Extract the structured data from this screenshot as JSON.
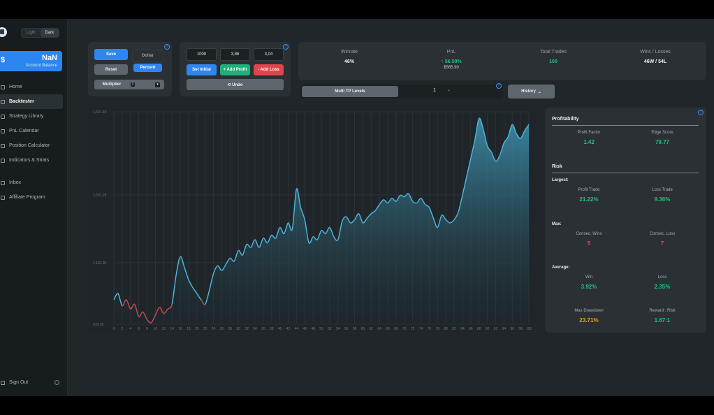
{
  "theme_toggle": {
    "light": "Light",
    "dark": "Dark"
  },
  "balance": {
    "currency": "$",
    "value": "NaN",
    "label": "Account Balance"
  },
  "nav": {
    "items": [
      {
        "label": "Home"
      },
      {
        "label": "Backtester"
      },
      {
        "label": "Strategy Library"
      },
      {
        "label": "PnL Calendar"
      },
      {
        "label": "Position Calculator"
      },
      {
        "label": "Indicators & Strats"
      }
    ],
    "secondary": [
      {
        "label": "Inbox"
      },
      {
        "label": "Affiliate Program"
      }
    ],
    "sign_out": "Sign Out"
  },
  "controls": {
    "save": "Save",
    "dollar": "Dollar",
    "reset": "Reset",
    "percent": "Percent",
    "multiplier": "Multiplier",
    "multiplier_value": "1"
  },
  "trade_inputs": {
    "initial": "1000",
    "profit_input": "3,86",
    "loss_input": "3,04",
    "set_initial": "Set Initial",
    "add_profit": "+ Add Profit",
    "add_loss": "- Add Loss",
    "undo": "⟲ Undo"
  },
  "stats": [
    {
      "title": "Winrate",
      "value": "46%",
      "sub": ""
    },
    {
      "title": "PnL",
      "value": "↑ 56.59%",
      "sub": "$565.90"
    },
    {
      "title": "Total Trades",
      "value": "100",
      "sub": ""
    },
    {
      "title": "Wins / Losses",
      "value": "46W / 54L",
      "sub": ""
    }
  ],
  "tp_levels": {
    "label": "Multi TP Levels",
    "value": "1"
  },
  "history": "History",
  "metrics": {
    "profitability": "Profitability",
    "profit_factor": {
      "label": "Profit Factor",
      "value": "1.42"
    },
    "edge_score": {
      "label": "Edge Score",
      "value": "79.77"
    },
    "risk": "Risk",
    "largest": "Largest:",
    "profit_trade": {
      "label": "Profit Trade",
      "value": "21.22%"
    },
    "loss_trade": {
      "label": "Loss Trade",
      "value": "9.36%"
    },
    "max": "Max:",
    "consec_wins": {
      "label": "Consec. Wins",
      "value": "5"
    },
    "consec_loss": {
      "label": "Consec. Loss",
      "value": "7"
    },
    "average": "Average:",
    "avg_win": {
      "label": "Win",
      "value": "3.92%"
    },
    "avg_loss": {
      "label": "Loss",
      "value": "2.35%"
    },
    "max_drawdown": {
      "label": "Max Drawdown",
      "value": "23.71%"
    },
    "reward_risk": {
      "label": "Reward : Risk",
      "value": "1.67:1"
    }
  },
  "colors": {
    "accent": "#2f86f0",
    "win": "#25c17f",
    "loss": "#e5484d",
    "line": "#4fb3d9"
  },
  "chart_data": {
    "type": "area",
    "x_ticks": [
      0,
      2,
      4,
      6,
      8,
      10,
      12,
      14,
      16,
      18,
      20,
      22,
      24,
      26,
      28,
      30,
      32,
      34,
      36,
      38,
      40,
      42,
      44,
      46,
      48,
      50,
      52,
      54,
      56,
      58,
      60,
      62,
      64,
      66,
      68,
      70,
      72,
      74,
      76,
      78,
      80,
      82,
      84,
      86,
      88,
      90,
      92,
      94,
      96,
      98,
      100
    ],
    "y_ticks": [
      "1,601.49",
      "1,331.28",
      "1,110.28",
      "910.28"
    ],
    "ylim": [
      910.28,
      1601.49
    ],
    "x": [
      0,
      1,
      2,
      3,
      4,
      5,
      6,
      7,
      8,
      9,
      10,
      11,
      12,
      13,
      14,
      15,
      16,
      17,
      18,
      19,
      20,
      21,
      22,
      23,
      24,
      25,
      26,
      27,
      28,
      29,
      30,
      31,
      32,
      33,
      34,
      35,
      36,
      37,
      38,
      39,
      40,
      41,
      42,
      43,
      44,
      45,
      46,
      47,
      48,
      49,
      50,
      51,
      52,
      53,
      54,
      55,
      56,
      57,
      58,
      59,
      60,
      61,
      62,
      63,
      64,
      65,
      66,
      67,
      68,
      69,
      70,
      71,
      72,
      73,
      74,
      75,
      76,
      77,
      78,
      79,
      80,
      81,
      82,
      83,
      84,
      85,
      86,
      87,
      88,
      89,
      90,
      91,
      92,
      93,
      94,
      95,
      96,
      97,
      98,
      99,
      100
    ],
    "values": [
      990,
      1010,
      970,
      990,
      960,
      975,
      935,
      950,
      925,
      915,
      940,
      965,
      945,
      960,
      975,
      1070,
      1130,
      1095,
      1055,
      1030,
      1010,
      990,
      975,
      1020,
      1075,
      1100,
      1085,
      1105,
      1125,
      1115,
      1150,
      1135,
      1170,
      1160,
      1185,
      1160,
      1190,
      1175,
      1200,
      1190,
      1225,
      1205,
      1240,
      1220,
      1350,
      1290,
      1250,
      1175,
      1195,
      1185,
      1215,
      1205,
      1225,
      1195,
      1185,
      1245,
      1260,
      1240,
      1250,
      1270,
      1240,
      1255,
      1270,
      1280,
      1300,
      1315,
      1305,
      1320,
      1310,
      1330,
      1325,
      1335,
      1310,
      1305,
      1320,
      1300,
      1290,
      1255,
      1225,
      1265,
      1250,
      1240,
      1250,
      1275,
      1330,
      1390,
      1450,
      1510,
      1580,
      1545,
      1490,
      1470,
      1440,
      1460,
      1500,
      1520,
      1560,
      1530,
      1515,
      1540,
      1560
    ],
    "series": [
      {
        "values_ref": "values",
        "line_color": "#4fb3d9",
        "fill": "gradient"
      }
    ]
  }
}
